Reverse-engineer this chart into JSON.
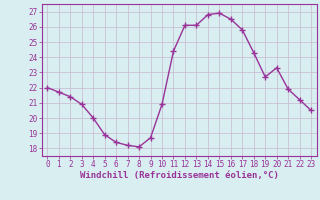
{
  "x": [
    0,
    1,
    2,
    3,
    4,
    5,
    6,
    7,
    8,
    9,
    10,
    11,
    12,
    13,
    14,
    15,
    16,
    17,
    18,
    19,
    20,
    21,
    22,
    23
  ],
  "y": [
    22.0,
    21.7,
    21.4,
    20.9,
    20.0,
    18.9,
    18.4,
    18.2,
    18.1,
    18.7,
    20.9,
    24.4,
    26.1,
    26.1,
    26.8,
    26.9,
    26.5,
    25.8,
    24.3,
    22.7,
    23.3,
    21.9,
    21.2,
    20.5
  ],
  "line_color": "#993399",
  "marker": "+",
  "marker_size": 4,
  "line_width": 1.0,
  "bg_color": "#d8eef0",
  "grid_color": "#c8b8d0",
  "xlabel": "Windchill (Refroidissement éolien,°C)",
  "xlabel_color": "#993399",
  "tick_color": "#993399",
  "spine_color": "#993399",
  "ylim": [
    17.5,
    27.5
  ],
  "xlim": [
    -0.5,
    23.5
  ],
  "yticks": [
    18,
    19,
    20,
    21,
    22,
    23,
    24,
    25,
    26,
    27
  ],
  "xticks": [
    0,
    1,
    2,
    3,
    4,
    5,
    6,
    7,
    8,
    9,
    10,
    11,
    12,
    13,
    14,
    15,
    16,
    17,
    18,
    19,
    20,
    21,
    22,
    23
  ],
  "tick_fontsize": 5.5,
  "xlabel_fontsize": 6.5
}
